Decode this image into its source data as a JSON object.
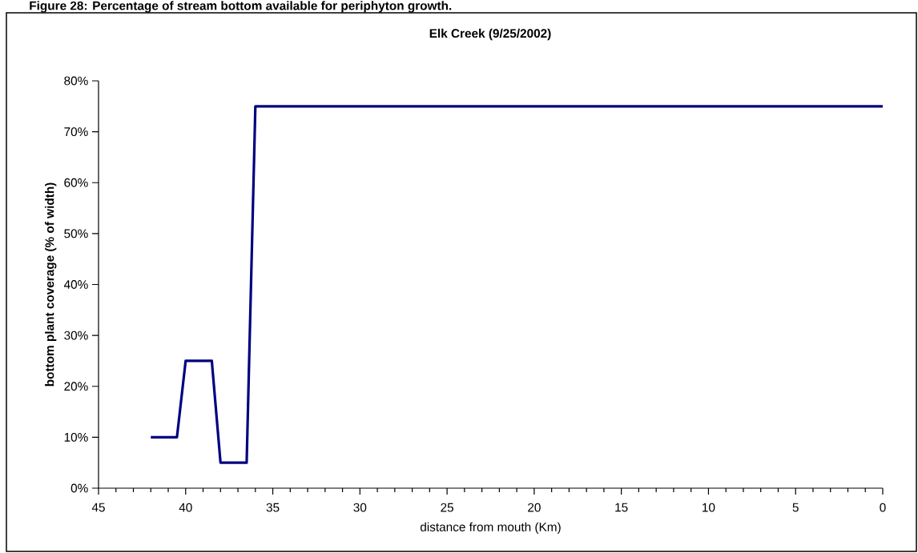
{
  "chart_data": {
    "type": "line",
    "title": "Elk Creek (9/25/2002)",
    "annotations": [
      "Figure 28:          Percentage of stream bottom available for periphyton growth."
    ],
    "xlabel": "distance from mouth (Km)",
    "ylabel": "bottom plant coverage (% of width)",
    "x": [
      42,
      40.5,
      40,
      38.5,
      38,
      36.5,
      36,
      0
    ],
    "series": [
      {
        "color": "#000080",
        "values": [
          10,
          10,
          25,
          25,
          5,
          5,
          75,
          75
        ]
      }
    ],
    "xlim": [
      45,
      0
    ],
    "xticks": [
      45,
      40,
      35,
      30,
      25,
      20,
      15,
      10,
      5,
      0
    ],
    "ylim": [
      0,
      80
    ],
    "yticks": [
      {
        "value": 0,
        "label": "0%"
      },
      {
        "value": 10,
        "label": "10%"
      },
      {
        "value": 20,
        "label": "20%"
      },
      {
        "value": 30,
        "label": "30%"
      },
      {
        "value": 40,
        "label": "40%"
      },
      {
        "value": 50,
        "label": "50%"
      },
      {
        "value": 60,
        "label": "60%"
      },
      {
        "value": 70,
        "label": "70%"
      },
      {
        "value": 80,
        "label": "80%"
      }
    ],
    "grid": false,
    "legend": false,
    "marker": "none",
    "line_style": "solid"
  }
}
